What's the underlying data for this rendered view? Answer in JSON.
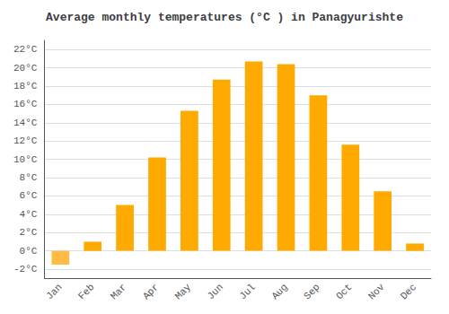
{
  "chart_data": {
    "type": "bar",
    "title": "Average monthly temperatures (°C ) in Panagyurishte",
    "categories": [
      "Jan",
      "Feb",
      "Mar",
      "Apr",
      "May",
      "Jun",
      "Jul",
      "Aug",
      "Sep",
      "Oct",
      "Nov",
      "Dec"
    ],
    "values": [
      -1.5,
      1.0,
      5.0,
      10.2,
      15.3,
      18.7,
      20.7,
      20.4,
      17.0,
      11.6,
      6.5,
      0.8
    ],
    "colors": [
      "#FFBB44",
      "#FFAA00",
      "#FFAA00",
      "#FFAA00",
      "#FFAA00",
      "#FFAA00",
      "#FFAA00",
      "#FFAA00",
      "#FFAA00",
      "#FFAA00",
      "#FFAA00",
      "#FFAA00"
    ],
    "ylim": [
      -3,
      23
    ],
    "yticks": [
      {
        "value": -2,
        "label": "-2°C"
      },
      {
        "value": 0,
        "label": "0°C"
      },
      {
        "value": 2,
        "label": "2°C"
      },
      {
        "value": 4,
        "label": "4°C"
      },
      {
        "value": 6,
        "label": "6°C"
      },
      {
        "value": 8,
        "label": "8°C"
      },
      {
        "value": 10,
        "label": "10°C"
      },
      {
        "value": 12,
        "label": "12°C"
      },
      {
        "value": 14,
        "label": "14°C"
      },
      {
        "value": 16,
        "label": "16°C"
      },
      {
        "value": 18,
        "label": "18°C"
      },
      {
        "value": 20,
        "label": "20°C"
      },
      {
        "value": 22,
        "label": "22°C"
      }
    ],
    "grid": true
  }
}
